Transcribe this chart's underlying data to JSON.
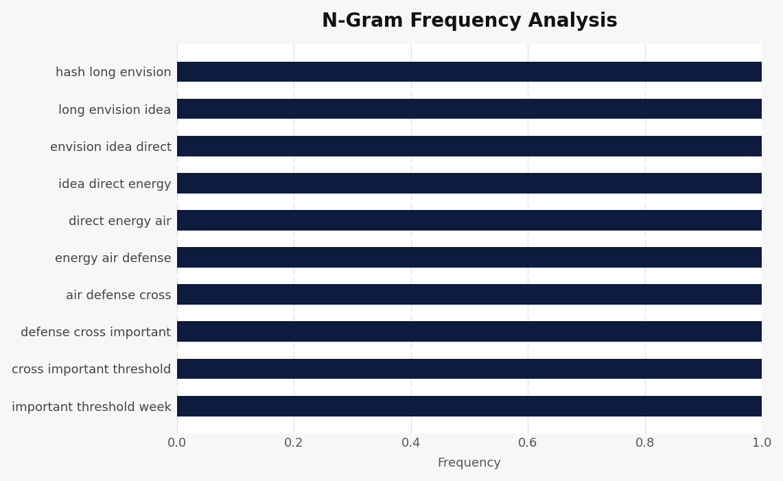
{
  "title": "N-Gram Frequency Analysis",
  "xlabel": "Frequency",
  "categories": [
    "important threshold week",
    "cross important threshold",
    "defense cross important",
    "air defense cross",
    "energy air defense",
    "direct energy air",
    "idea direct energy",
    "envision idea direct",
    "long envision idea",
    "hash long envision"
  ],
  "values": [
    1.0,
    1.0,
    1.0,
    1.0,
    1.0,
    1.0,
    1.0,
    1.0,
    1.0,
    1.0
  ],
  "bar_color": "#0d1b3e",
  "background_color": "#f7f7f7",
  "plot_bg_color": "#ffffff",
  "title_fontsize": 20,
  "label_fontsize": 13,
  "tick_fontsize": 13,
  "ylabel_fontsize": 13,
  "bar_height": 0.55,
  "xlim": [
    0.0,
    1.0
  ]
}
